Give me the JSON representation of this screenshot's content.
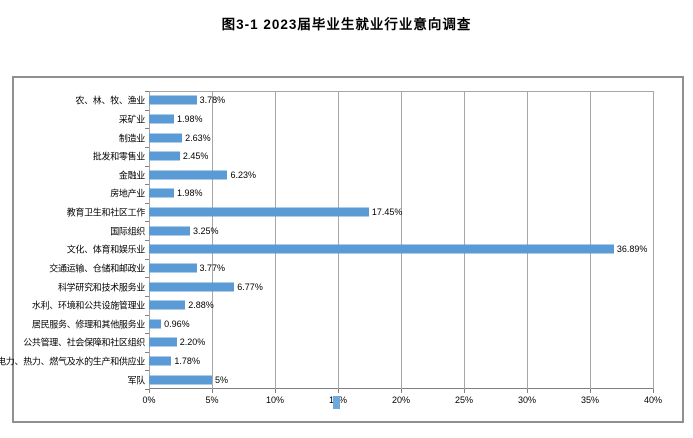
{
  "title": "图3-1    2023届毕业生就业行业意向调查",
  "chart_data": {
    "type": "bar",
    "orientation": "horizontal",
    "title": "图3-1    2023届毕业生就业行业意向调查",
    "categories": [
      "农、林、牧、渔业",
      "采矿业",
      "制造业",
      "批发和零售业",
      "金融业",
      "房地产业",
      "教育卫生和社区工作",
      "国际组织",
      "文化、体育和娱乐业",
      "交通运输、仓储和邮政业",
      "科学研究和技术服务业",
      "水利、环境和公共设施管理业",
      "居民服务、修理和其他服务业",
      "公共管理、社会保障和社区组织",
      "电力、热力、燃气及水的生产和供应业",
      "军队"
    ],
    "values": [
      3.78,
      1.98,
      2.63,
      2.45,
      6.23,
      1.98,
      17.45,
      3.25,
      36.89,
      3.77,
      6.77,
      2.88,
      0.96,
      2.2,
      1.78,
      5
    ],
    "value_labels": [
      "3.78%",
      "1.98%",
      "2.63%",
      "2.45%",
      "6.23%",
      "1.98%",
      "17.45%",
      "3.25%",
      "36.89%",
      "3.77%",
      "6.77%",
      "2.88%",
      "0.96%",
      "2.20%",
      "1.78%",
      "5%"
    ],
    "xlabel": "",
    "ylabel": "",
    "xlim": [
      0,
      40
    ],
    "x_tick_labels": [
      "0%",
      "5%",
      "10%",
      "15%",
      "20%",
      "25%",
      "30%",
      "35%",
      "40%"
    ],
    "x_tick_values": [
      0,
      5,
      10,
      15,
      20,
      25,
      30,
      35,
      40
    ],
    "grid": true,
    "legend": "none"
  },
  "colors": {
    "bar": "#5B9BD5",
    "gridline": "#a6a6a6",
    "frame_border": "#909090",
    "text": "#000000",
    "cursor": "#6fa8dc"
  }
}
